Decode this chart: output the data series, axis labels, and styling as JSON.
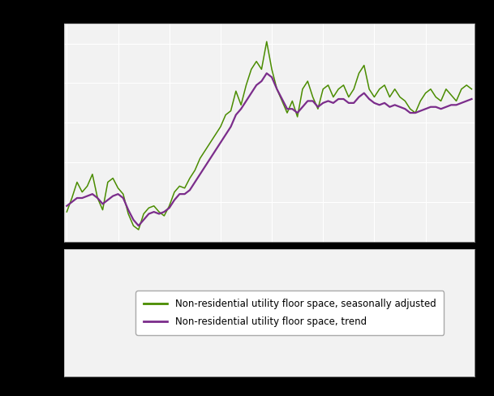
{
  "background_color": "#000000",
  "plot_bg_color": "#f2f2f2",
  "grid_color": "#ffffff",
  "sa_color": "#4a8c00",
  "trend_color": "#7b2d8b",
  "legend_label_sa": "Non-residential utility floor space, seasonally adjusted",
  "legend_label_trend": "Non-residential utility floor space, trend",
  "sa": [
    55,
    62,
    70,
    65,
    68,
    74,
    62,
    56,
    70,
    72,
    67,
    64,
    54,
    48,
    46,
    54,
    57,
    58,
    55,
    53,
    58,
    65,
    68,
    67,
    72,
    76,
    82,
    86,
    90,
    94,
    98,
    104,
    106,
    116,
    109,
    119,
    127,
    131,
    127,
    141,
    127,
    117,
    111,
    105,
    111,
    103,
    117,
    121,
    113,
    107,
    117,
    119,
    113,
    117,
    119,
    113,
    117,
    125,
    129,
    117,
    113,
    117,
    119,
    113,
    117,
    113,
    111,
    107,
    105,
    111,
    115,
    117,
    113,
    111,
    117,
    114,
    111,
    117,
    119,
    117
  ],
  "trend": [
    58,
    60,
    62,
    62,
    63,
    64,
    62,
    59,
    61,
    63,
    64,
    62,
    56,
    51,
    48,
    51,
    54,
    55,
    54,
    55,
    57,
    61,
    64,
    64,
    66,
    70,
    74,
    78,
    82,
    86,
    90,
    94,
    98,
    104,
    107,
    111,
    115,
    119,
    121,
    125,
    123,
    117,
    112,
    107,
    107,
    105,
    108,
    111,
    111,
    108,
    110,
    111,
    110,
    112,
    112,
    110,
    110,
    113,
    115,
    112,
    110,
    109,
    110,
    108,
    109,
    108,
    107,
    105,
    105,
    106,
    107,
    108,
    108,
    107,
    108,
    109,
    109,
    110,
    111,
    112
  ],
  "ylim": [
    40,
    150
  ],
  "figsize": [
    6.09,
    4.88
  ],
  "dpi": 100
}
